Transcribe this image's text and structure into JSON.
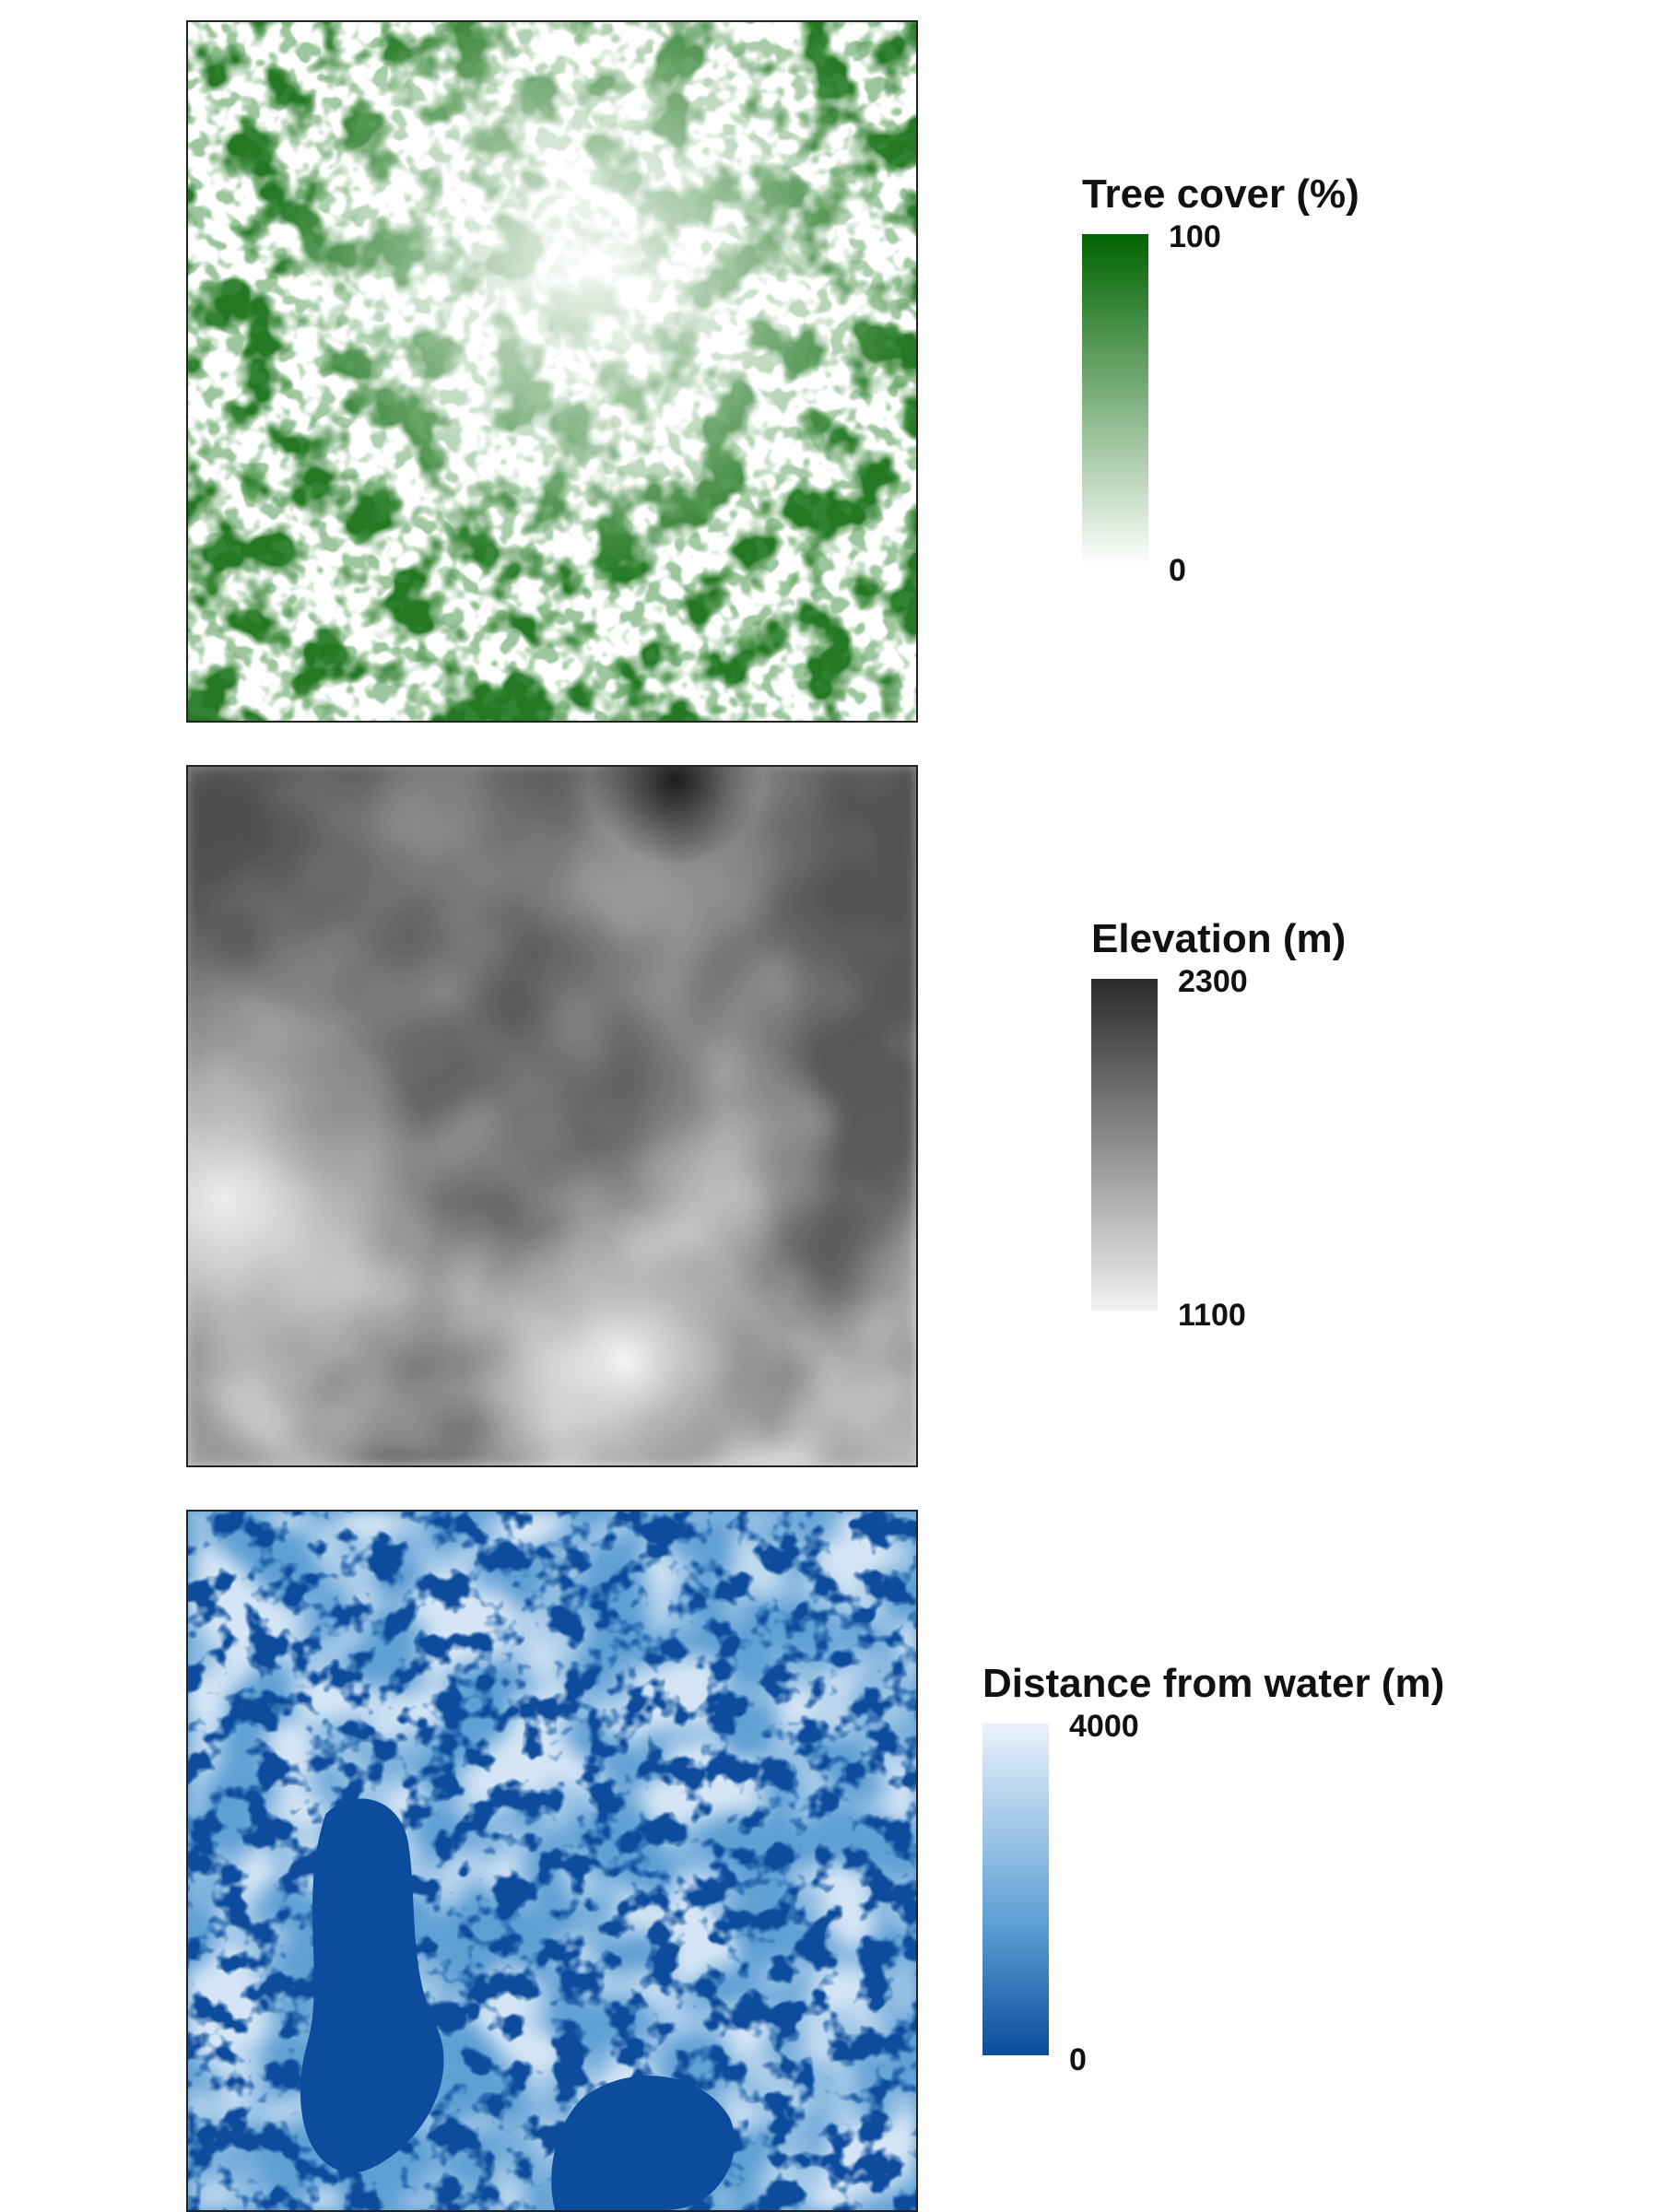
{
  "chart_data": [
    {
      "type": "heatmap",
      "legend": {
        "title": "Tree cover (%)",
        "max_label": "100",
        "min_label": "0",
        "range": [
          0,
          100
        ],
        "color_high": "#006400",
        "color_low": "#ffffff"
      },
      "pattern": "patchy forest cover, denser toward the lower-left and right edges"
    },
    {
      "type": "heatmap",
      "legend": {
        "title": "Elevation (m)",
        "max_label": "2300",
        "min_label": "1100",
        "range": [
          1100,
          2300
        ],
        "color_high": "#2b2b2b",
        "color_low": "#f2f2f2"
      },
      "pattern": "smooth terrain, highest near the top center, lowest in the lower-left"
    },
    {
      "type": "heatmap",
      "legend": {
        "title": "Distance from water (m)",
        "max_label": "4000",
        "min_label": "0",
        "range": [
          0,
          4000
        ],
        "color_high": "#eaf2fb",
        "color_low": "#0b4c9c"
      },
      "pattern": "dense network of water bodies with a large water area in the lower-left"
    }
  ]
}
